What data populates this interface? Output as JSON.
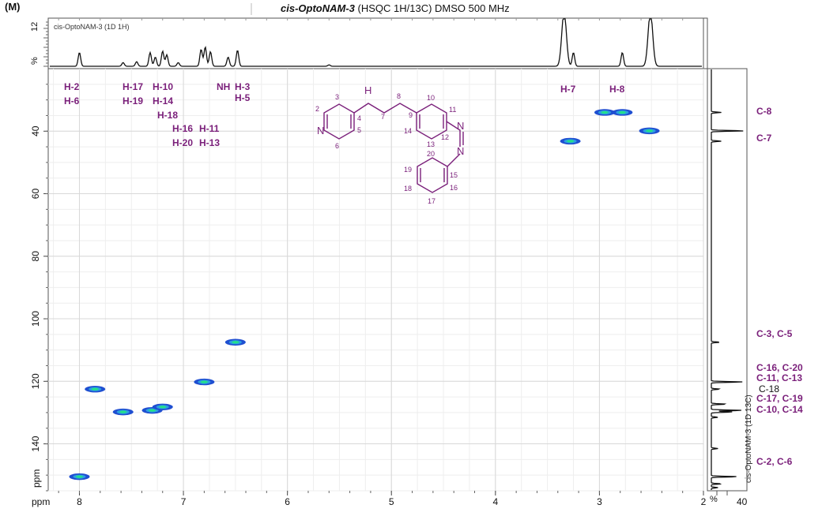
{
  "header": {
    "panel_label": "(M)",
    "compound": "cis-OptoNAM-3",
    "experiment": "(HSQC 1H/13C) DMSO 500 MHz"
  },
  "top_trace_label": "cis-OptoNAM-3 (1D 1H)",
  "right_trace_label": "cis-OptoNAM-3 (1D 13C)",
  "axis": {
    "unit": "ppm",
    "percent": "%"
  },
  "top_axis_labels": [
    "12",
    "%"
  ],
  "right_axis_labels": [
    "40"
  ],
  "colors": {
    "accent": "#7a1f7a",
    "cross_peak": "#1f4fd1",
    "cross_peak_core": "#23e08a"
  },
  "proton_labels": [
    "H-2",
    "H-6",
    "H-17",
    "H-19",
    "H-10",
    "H-14",
    "H-18",
    "H-16",
    "H-20",
    "H-11",
    "H-13",
    "NH",
    "H-3",
    "H-5",
    "H-7",
    "H-8"
  ],
  "carbon_labels": [
    "C-8",
    "C-7",
    "C-3, C-5",
    "C-16, C-20",
    "C-11, C-13",
    "C-18",
    "C-17, C-19",
    "C-10, C-14",
    "C-2, C-6"
  ],
  "structure_atom_numbers": [
    "2",
    "3",
    "4",
    "5",
    "6",
    "7",
    "8",
    "9",
    "10",
    "11",
    "12",
    "13",
    "14",
    "15",
    "16",
    "17",
    "18",
    "19",
    "20"
  ],
  "structure_atom_symbols": [
    "N",
    "H",
    "N",
    "N"
  ],
  "chart_data": {
    "type": "heatmap",
    "title": "cis-OptoNAM-3 (HSQC 1H/13C) DMSO 500 MHz",
    "xlabel": "ppm",
    "ylabel": "ppm",
    "x_range": [
      8.3,
      2.0
    ],
    "y_range": [
      20,
      155
    ],
    "x_ticks": [
      8,
      7,
      6,
      5,
      4,
      3,
      2
    ],
    "y_ticks": [
      40,
      60,
      80,
      100,
      120,
      140
    ],
    "grid": true,
    "cross_peaks": [
      {
        "x": 8.0,
        "y": 150.5
      },
      {
        "x": 7.85,
        "y": 122.5
      },
      {
        "x": 7.58,
        "y": 129.8
      },
      {
        "x": 7.3,
        "y": 129.3
      },
      {
        "x": 7.2,
        "y": 128.2
      },
      {
        "x": 6.8,
        "y": 120.2
      },
      {
        "x": 6.5,
        "y": 107.5
      },
      {
        "x": 3.28,
        "y": 43.2
      },
      {
        "x": 2.95,
        "y": 34.0
      },
      {
        "x": 2.78,
        "y": 34.0
      },
      {
        "x": 2.52,
        "y": 39.9
      }
    ],
    "proton_1d": {
      "peaks": [
        {
          "x": 8.0,
          "h": 0.3
        },
        {
          "x": 7.58,
          "h": 0.08
        },
        {
          "x": 7.45,
          "h": 0.1
        },
        {
          "x": 7.32,
          "h": 0.3
        },
        {
          "x": 7.27,
          "h": 0.2
        },
        {
          "x": 7.2,
          "h": 0.33
        },
        {
          "x": 7.16,
          "h": 0.25
        },
        {
          "x": 7.05,
          "h": 0.08
        },
        {
          "x": 6.83,
          "h": 0.37
        },
        {
          "x": 6.79,
          "h": 0.42
        },
        {
          "x": 6.74,
          "h": 0.32
        },
        {
          "x": 6.57,
          "h": 0.2
        },
        {
          "x": 6.48,
          "h": 0.35
        },
        {
          "x": 5.6,
          "h": 0.03
        },
        {
          "x": 3.34,
          "h": 1.2
        },
        {
          "x": 3.25,
          "h": 0.3
        },
        {
          "x": 2.78,
          "h": 0.3
        },
        {
          "x": 2.51,
          "h": 1.2
        }
      ]
    },
    "carbon_1d": {
      "peaks": [
        {
          "y": 34.0,
          "h": 0.3
        },
        {
          "y": 39.9,
          "h": 1.0
        },
        {
          "y": 43.2,
          "h": 0.3
        },
        {
          "y": 107.5,
          "h": 0.25
        },
        {
          "y": 120.2,
          "h": 0.95
        },
        {
          "y": 122.5,
          "h": 0.25
        },
        {
          "y": 127.3,
          "h": 0.45
        },
        {
          "y": 129.3,
          "h": 0.95
        },
        {
          "y": 129.8,
          "h": 0.65
        },
        {
          "y": 131.5,
          "h": 0.2
        },
        {
          "y": 141.5,
          "h": 0.2
        },
        {
          "y": 150.5,
          "h": 0.8
        },
        {
          "y": 152.8,
          "h": 0.3
        },
        {
          "y": 154.0,
          "h": 0.2
        }
      ]
    }
  }
}
